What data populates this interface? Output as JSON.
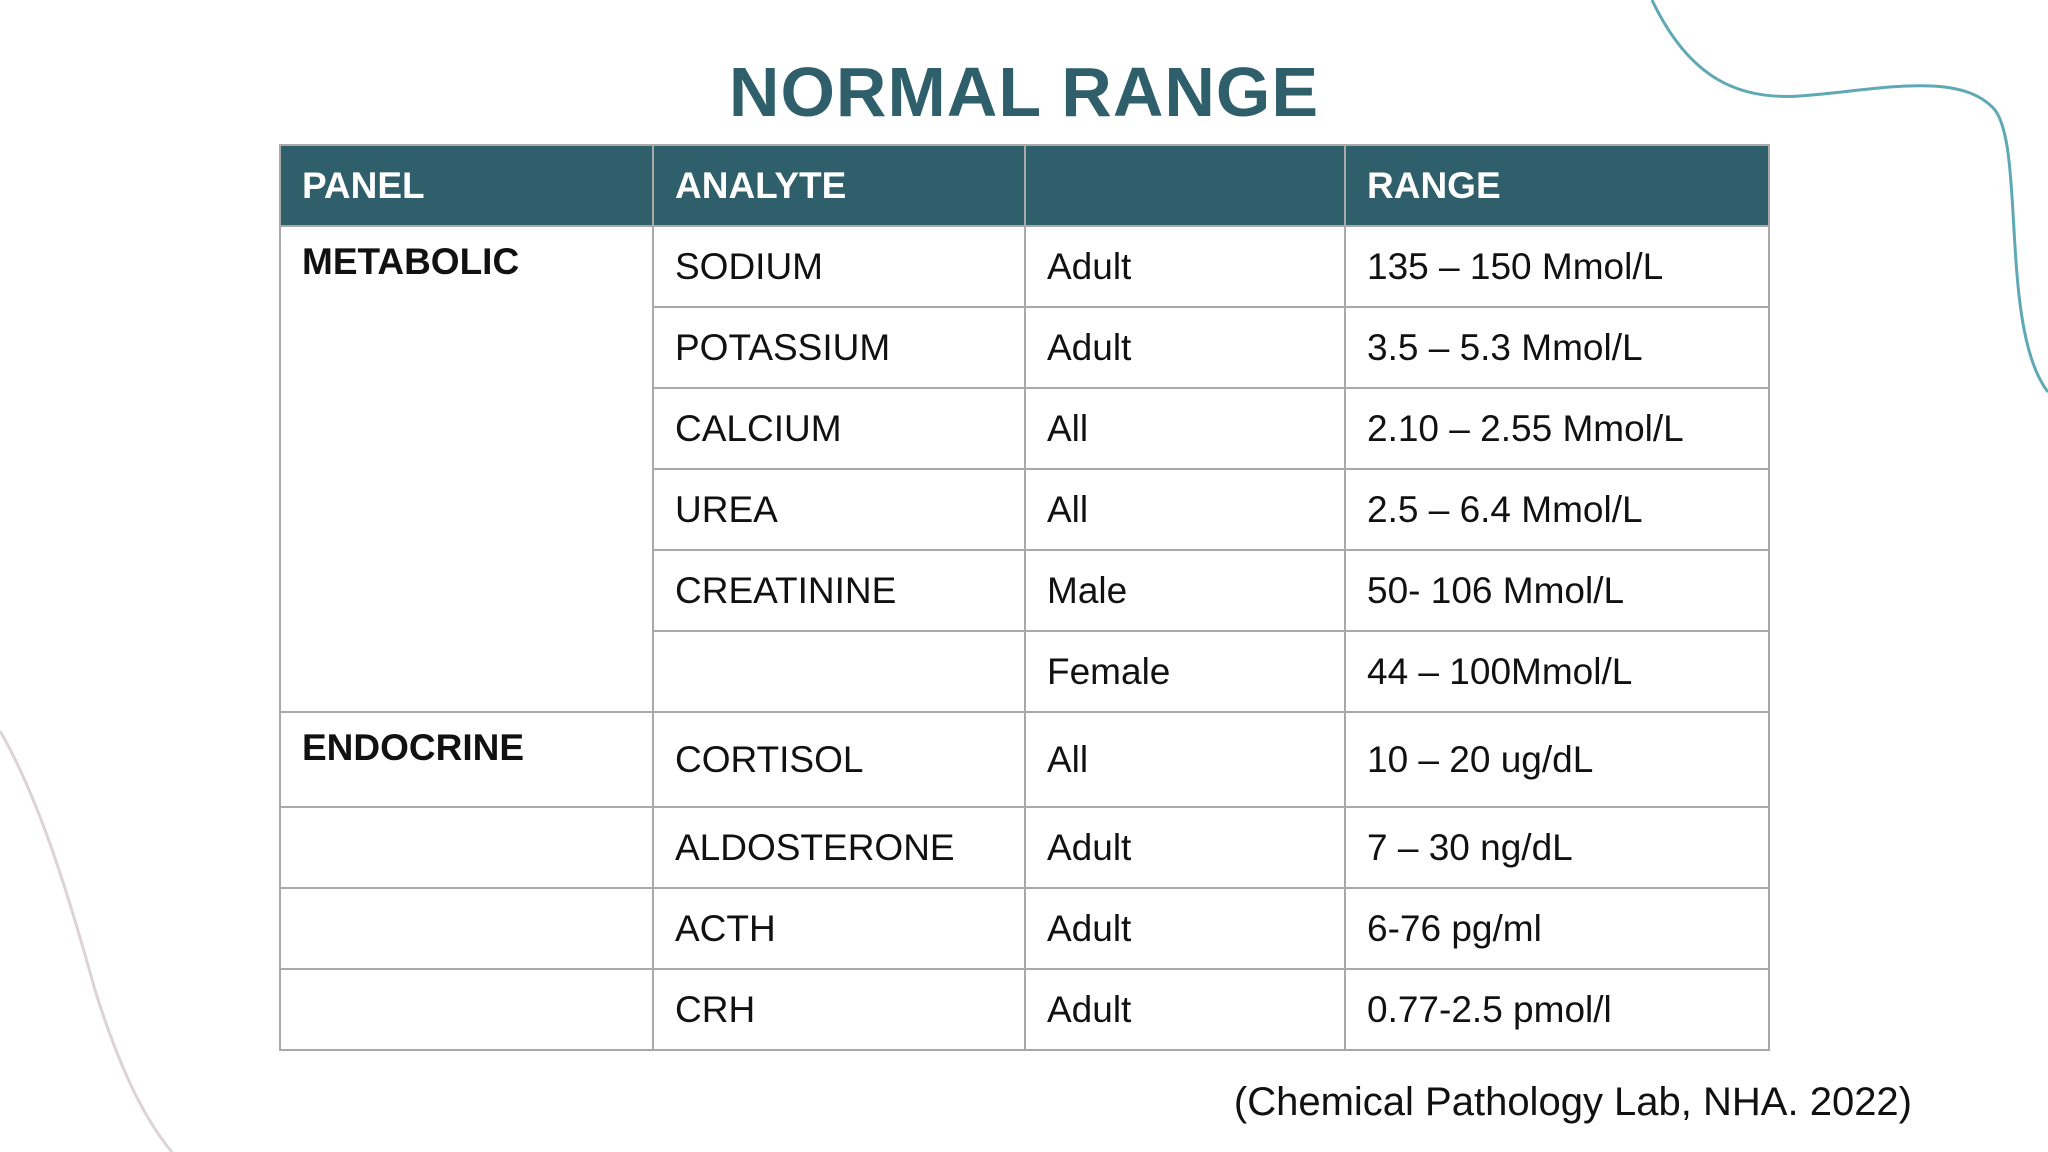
{
  "title": "NORMAL RANGE",
  "table": {
    "header": {
      "panel": "PANEL",
      "analyte": "ANALYTE",
      "range": "RANGE"
    },
    "rows": [
      {
        "panel": "METABOLIC",
        "analyte": "SODIUM",
        "group": "Adult",
        "range": "135 – 150 Mmol/L"
      },
      {
        "analyte": "POTASSIUM",
        "group": "Adult",
        "range": "3.5 – 5.3 Mmol/L"
      },
      {
        "analyte": "CALCIUM",
        "group": "All",
        "range": "2.10 – 2.55 Mmol/L"
      },
      {
        "analyte": "UREA",
        "group": "All",
        "range": "2.5 – 6.4 Mmol/L"
      },
      {
        "analyte": "CREATININE",
        "group": "Male",
        "range": "50- 106 Mmol/L"
      },
      {
        "group": "Female",
        "range": "44 – 100Mmol/L"
      },
      {
        "panel": "ENDOCRINE",
        "analyte": "CORTISOL",
        "group": "All",
        "range": "10 – 20 ug/dL"
      },
      {
        "analyte": "ALDOSTERONE",
        "group": "Adult",
        "range": "7 – 30 ng/dL"
      },
      {
        "analyte": "ACTH",
        "group": "Adult",
        "range": "6-76 pg/ml"
      },
      {
        "analyte": "CRH",
        "group": "Adult",
        "range": "0.77-2.5 pmol/l"
      }
    ]
  },
  "citation": "(Chemical Pathology Lab, NHA. 2022)"
}
